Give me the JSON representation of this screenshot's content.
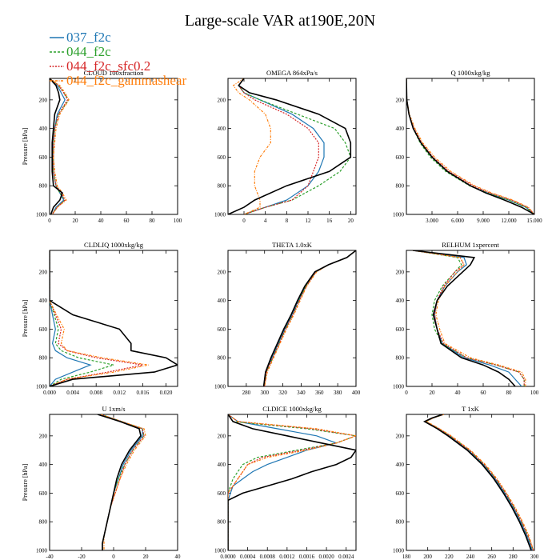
{
  "figure": {
    "title": "Large-scale VAR at190E,20N"
  },
  "legend": [
    {
      "label": "037_f2c",
      "color": "#1f77b4",
      "dash": ""
    },
    {
      "label": "044_f2c",
      "color": "#2ca02c",
      "dash": "3,2"
    },
    {
      "label": "044_f2c_sfc0.2",
      "color": "#d62728",
      "dash": "2,1.5"
    },
    {
      "label": "044_f2c_gammashear",
      "color": "#ff7f0e",
      "dash": "3,1.5,1,1.5"
    }
  ],
  "chart_data": [
    {
      "type": "line",
      "title": "CLOUD 100xfraction",
      "ylabel": "Pressure [hPa]",
      "xlim": [
        0,
        100
      ],
      "ylim": [
        1000,
        50
      ],
      "xticks": [
        0,
        20,
        40,
        60,
        80,
        100
      ],
      "yticks": [
        200,
        400,
        600,
        800,
        1000
      ],
      "p": [
        50,
        100,
        150,
        200,
        300,
        400,
        500,
        600,
        700,
        800,
        850,
        900,
        950,
        1000
      ],
      "series": [
        {
          "name": "037_f2c",
          "values": [
            0,
            6,
            9,
            12,
            6,
            4,
            3,
            3,
            3,
            5,
            8,
            11,
            5,
            2
          ]
        },
        {
          "name": "044_f2c",
          "values": [
            0,
            7,
            11,
            15,
            7,
            4,
            3,
            3,
            3,
            5,
            8,
            12,
            6,
            2
          ]
        },
        {
          "name": "044_f2c_sfc0.2",
          "values": [
            0,
            7,
            11,
            14,
            7,
            4,
            3,
            3,
            3,
            5,
            9,
            12,
            6,
            2
          ]
        },
        {
          "name": "044_f2c_gammashear",
          "values": [
            0,
            8,
            12,
            15,
            8,
            5,
            4,
            3,
            4,
            6,
            10,
            13,
            6,
            2
          ]
        },
        {
          "name": "",
          "values": [
            0,
            5,
            7,
            8,
            4,
            3,
            2,
            2,
            2,
            3,
            10,
            8,
            3,
            1
          ]
        }
      ]
    },
    {
      "type": "line",
      "title": "OMEGA 864xPa/s",
      "ylabel": "",
      "xlim": [
        -3,
        21
      ],
      "ylim": [
        1000,
        50
      ],
      "xticks": [
        0,
        4,
        8,
        12,
        16,
        20
      ],
      "yticks": [
        200,
        400,
        600,
        800,
        1000
      ],
      "p": [
        50,
        100,
        150,
        200,
        300,
        400,
        500,
        600,
        700,
        800,
        900,
        950,
        1000
      ],
      "series": [
        {
          "name": "037_f2c",
          "values": [
            0,
            -1,
            0,
            3,
            9,
            13,
            15,
            15,
            14,
            12,
            8,
            4,
            0
          ]
        },
        {
          "name": "044_f2c",
          "values": [
            0,
            -1,
            0,
            3,
            10,
            17,
            19,
            20,
            18,
            14,
            9,
            4,
            0
          ]
        },
        {
          "name": "044_f2c_sfc0.2",
          "values": [
            0,
            -1,
            0,
            2,
            8,
            12,
            14,
            14,
            13,
            12,
            9,
            4,
            0
          ]
        },
        {
          "name": "044_f2c_gammashear",
          "values": [
            0,
            -2,
            -1,
            1,
            4,
            5,
            5,
            3,
            2,
            2,
            3,
            3,
            0
          ]
        },
        {
          "name": "",
          "values": [
            0,
            -1,
            1,
            6,
            14,
            19,
            20,
            20,
            16,
            8,
            2,
            0,
            -3
          ]
        }
      ]
    },
    {
      "type": "line",
      "title": "Q 1000xkg/kg",
      "ylabel": "",
      "xlim": [
        0,
        15
      ],
      "ylim": [
        1000,
        50
      ],
      "xticks": [
        3,
        6,
        9,
        12,
        15
      ],
      "xticklabels": [
        "3.000",
        "6.000",
        "9.000",
        "12.000",
        "15.000"
      ],
      "yticks": [
        200,
        400,
        600,
        800,
        1000
      ],
      "p": [
        50,
        200,
        300,
        400,
        500,
        600,
        700,
        800,
        850,
        900,
        950,
        1000
      ],
      "series": [
        {
          "name": "037_f2c",
          "values": [
            0,
            0.05,
            0.3,
            0.8,
            1.7,
            3,
            4.8,
            7.5,
            9.5,
            12,
            14,
            15
          ]
        },
        {
          "name": "044_f2c",
          "values": [
            0,
            0.05,
            0.3,
            0.8,
            1.6,
            2.8,
            4.6,
            7.4,
            9.5,
            12,
            14,
            15
          ]
        },
        {
          "name": "044_f2c_sfc0.2",
          "values": [
            0,
            0.05,
            0.3,
            0.9,
            1.8,
            3.1,
            5,
            7.8,
            9.8,
            12.3,
            14.2,
            15
          ]
        },
        {
          "name": "044_f2c_gammashear",
          "values": [
            0,
            0.05,
            0.35,
            1,
            1.9,
            3.3,
            5.2,
            8,
            10,
            12.5,
            14.3,
            15
          ]
        },
        {
          "name": "",
          "values": [
            0,
            0.05,
            0.3,
            0.8,
            1.7,
            3,
            4.8,
            7.5,
            9.3,
            11.5,
            13.5,
            15
          ]
        }
      ]
    },
    {
      "type": "line",
      "title": "CLDLIQ 1000xkg/kg",
      "ylabel": "Pressure [hPa]",
      "xlim": [
        0,
        0.022
      ],
      "ylim": [
        1000,
        50
      ],
      "xticks": [
        0,
        0.004,
        0.008,
        0.012,
        0.016,
        0.02
      ],
      "xticklabels": [
        "0.000",
        "0.004",
        "0.008",
        "0.012",
        "0.016",
        "0.020"
      ],
      "yticks": [
        200,
        400,
        600,
        800,
        1000
      ],
      "p": [
        50,
        400,
        500,
        600,
        700,
        750,
        800,
        850,
        900,
        950,
        1000
      ],
      "series": [
        {
          "name": "037_f2c",
          "values": [
            0,
            0,
            0.0005,
            0.001,
            0.0005,
            0.001,
            0.003,
            0.007,
            0.004,
            0.001,
            0
          ]
        },
        {
          "name": "044_f2c",
          "values": [
            0,
            0,
            0.0008,
            0.0015,
            0.001,
            0.002,
            0.005,
            0.011,
            0.007,
            0.002,
            0
          ]
        },
        {
          "name": "044_f2c_sfc0.2",
          "values": [
            0,
            0,
            0.001,
            0.002,
            0.0015,
            0.003,
            0.008,
            0.016,
            0.01,
            0.003,
            0
          ]
        },
        {
          "name": "044_f2c_gammashear",
          "values": [
            0,
            0,
            0.0012,
            0.0025,
            0.002,
            0.003,
            0.009,
            0.017,
            0.011,
            0.003,
            0
          ]
        },
        {
          "name": "",
          "values": [
            0,
            0,
            0.004,
            0.012,
            0.014,
            0.014,
            0.02,
            0.022,
            0.018,
            0.004,
            0
          ]
        }
      ]
    },
    {
      "type": "line",
      "title": "THETA 1.0xK",
      "ylabel": "",
      "xlim": [
        260,
        400
      ],
      "ylim": [
        1000,
        50
      ],
      "xticks": [
        280,
        300,
        320,
        340,
        360,
        380,
        400
      ],
      "yticks": [
        200,
        400,
        600,
        800,
        1000
      ],
      "p": [
        50,
        100,
        150,
        200,
        300,
        400,
        500,
        600,
        700,
        800,
        900,
        1000
      ],
      "series": [
        {
          "name": "037_f2c",
          "values": [
            400,
            390,
            370,
            356,
            345,
            337,
            330,
            322,
            315,
            308,
            301,
            299
          ]
        },
        {
          "name": "044_f2c",
          "values": [
            400,
            390,
            370,
            356,
            345,
            338,
            331,
            323,
            316,
            309,
            302,
            300
          ]
        },
        {
          "name": "044_f2c_sfc0.2",
          "values": [
            400,
            390,
            370,
            356,
            346,
            338,
            331,
            323,
            316,
            309,
            302,
            300
          ]
        },
        {
          "name": "044_f2c_gammashear",
          "values": [
            400,
            390,
            370,
            357,
            346,
            339,
            332,
            324,
            317,
            310,
            303,
            300
          ]
        },
        {
          "name": "",
          "values": [
            400,
            390,
            370,
            355,
            344,
            336,
            329,
            321,
            314,
            307,
            301,
            299
          ]
        }
      ]
    },
    {
      "type": "line",
      "title": "RELHUM 1xpercent",
      "ylabel": "",
      "xlim": [
        0,
        100
      ],
      "ylim": [
        1000,
        50
      ],
      "xticks": [
        0,
        20,
        40,
        60,
        80,
        100
      ],
      "yticks": [
        200,
        400,
        600,
        800,
        1000
      ],
      "p": [
        50,
        100,
        150,
        200,
        300,
        400,
        500,
        600,
        700,
        800,
        850,
        900,
        950,
        1000
      ],
      "series": [
        {
          "name": "037_f2c",
          "values": [
            5,
            45,
            47,
            40,
            30,
            24,
            22,
            24,
            28,
            45,
            65,
            80,
            85,
            90
          ]
        },
        {
          "name": "044_f2c",
          "values": [
            5,
            40,
            43,
            38,
            28,
            22,
            20,
            22,
            28,
            47,
            70,
            88,
            92,
            92
          ]
        },
        {
          "name": "044_f2c_sfc0.2",
          "values": [
            5,
            42,
            45,
            38,
            29,
            24,
            22,
            24,
            29,
            47,
            70,
            88,
            92,
            92
          ]
        },
        {
          "name": "044_f2c_gammashear",
          "values": [
            5,
            42,
            45,
            40,
            30,
            25,
            23,
            26,
            30,
            50,
            72,
            90,
            93,
            93
          ]
        },
        {
          "name": "",
          "values": [
            5,
            53,
            50,
            44,
            32,
            24,
            21,
            24,
            27,
            43,
            60,
            72,
            80,
            85
          ]
        }
      ]
    },
    {
      "type": "line",
      "title": "U 1xm/s",
      "ylabel": "Pressure [hPa]",
      "xlim": [
        -40,
        40
      ],
      "ylim": [
        1000,
        50
      ],
      "xticks": [
        -40,
        -20,
        0,
        20,
        40
      ],
      "yticks": [
        200,
        400,
        600,
        800,
        1000
      ],
      "p": [
        50,
        100,
        150,
        200,
        300,
        400,
        500,
        600,
        700,
        800,
        900,
        950,
        1000
      ],
      "series": [
        {
          "name": "037_f2c",
          "values": [
            -8,
            5,
            18,
            18,
            11,
            6,
            3,
            0,
            -2,
            -4,
            -6,
            -7,
            -7
          ]
        },
        {
          "name": "044_f2c",
          "values": [
            -8,
            5,
            18,
            19,
            12,
            7,
            3,
            0,
            -2,
            -4,
            -6,
            -7,
            -7
          ]
        },
        {
          "name": "044_f2c_sfc0.2",
          "values": [
            -8,
            5,
            18,
            19,
            12,
            7,
            4,
            1,
            -2,
            -4,
            -6,
            -7,
            -7
          ]
        },
        {
          "name": "044_f2c_gammashear",
          "values": [
            -8,
            5,
            19,
            20,
            13,
            8,
            4,
            1,
            -2,
            -4,
            -6,
            -6,
            -6
          ]
        },
        {
          "name": "",
          "values": [
            -10,
            4,
            16,
            17,
            10,
            5,
            2,
            0,
            -2,
            -4,
            -6,
            -7,
            -7
          ]
        }
      ]
    },
    {
      "type": "line",
      "title": "CLDICE 1000xkg/kg",
      "ylabel": "",
      "xlim": [
        0,
        0.0026
      ],
      "ylim": [
        1000,
        50
      ],
      "xticks": [
        0,
        0.0004,
        0.0008,
        0.0012,
        0.0016,
        0.002,
        0.0024
      ],
      "xticklabels": [
        "0.0000",
        "0.0004",
        "0.0008",
        "0.0012",
        "0.0016",
        "0.0020",
        "0.0024"
      ],
      "yticks": [
        200,
        400,
        600,
        800,
        1000
      ],
      "p": [
        50,
        100,
        150,
        200,
        250,
        300,
        350,
        400,
        450,
        500,
        550,
        600,
        650,
        700,
        1000
      ],
      "series": [
        {
          "name": "037_f2c",
          "values": [
            0,
            0.0002,
            0.001,
            0.0018,
            0.0022,
            0.0016,
            0.0012,
            0.0008,
            0.0005,
            0.0003,
            0.0001,
            5e-05,
            0,
            0,
            0
          ]
        },
        {
          "name": "044_f2c",
          "values": [
            0,
            0.0001,
            0.0016,
            0.0026,
            0.0022,
            0.0014,
            0.0006,
            0.0003,
            0.0002,
            0.0001,
            5e-05,
            0,
            0,
            0,
            0
          ]
        },
        {
          "name": "044_f2c_sfc0.2",
          "values": [
            0,
            0.0002,
            0.0017,
            0.0026,
            0.0022,
            0.0015,
            0.0007,
            0.0004,
            0.0003,
            0.0002,
            0.0001,
            0,
            0,
            0,
            0
          ]
        },
        {
          "name": "044_f2c_gammashear",
          "values": [
            0,
            0.0002,
            0.0018,
            0.0026,
            0.0022,
            0.0016,
            0.0008,
            0.0004,
            0.0003,
            0.0002,
            0.0001,
            0,
            0,
            0,
            0
          ]
        },
        {
          "name": "",
          "values": [
            0,
            0.0001,
            0.0005,
            0.0012,
            0.0019,
            0.0026,
            0.0025,
            0.0022,
            0.0017,
            0.0013,
            0.0008,
            0.0003,
            0,
            0,
            0
          ]
        }
      ]
    },
    {
      "type": "line",
      "title": "T 1xK",
      "ylabel": "",
      "xlim": [
        180,
        300
      ],
      "ylim": [
        1000,
        50
      ],
      "xticks": [
        180,
        200,
        220,
        240,
        260,
        280,
        300
      ],
      "yticks": [
        200,
        400,
        600,
        800,
        1000
      ],
      "p": [
        50,
        75,
        100,
        150,
        200,
        300,
        400,
        500,
        600,
        700,
        800,
        900,
        1000
      ],
      "series": [
        {
          "name": "037_f2c",
          "values": [
            215,
            205,
            198,
            210,
            220,
            238,
            252,
            263,
            272,
            280,
            287,
            293,
            298
          ]
        },
        {
          "name": "044_f2c",
          "values": [
            215,
            205,
            198,
            210,
            221,
            239,
            253,
            264,
            273,
            281,
            288,
            294,
            299
          ]
        },
        {
          "name": "044_f2c_sfc0.2",
          "values": [
            215,
            205,
            198,
            211,
            221,
            239,
            253,
            264,
            273,
            281,
            288,
            294,
            299
          ]
        },
        {
          "name": "044_f2c_gammashear",
          "values": [
            215,
            205,
            199,
            211,
            222,
            240,
            254,
            265,
            274,
            282,
            289,
            295,
            299
          ]
        },
        {
          "name": "",
          "values": [
            214,
            204,
            197,
            209,
            219,
            237,
            251,
            262,
            271,
            279,
            286,
            292,
            297
          ]
        }
      ]
    }
  ]
}
